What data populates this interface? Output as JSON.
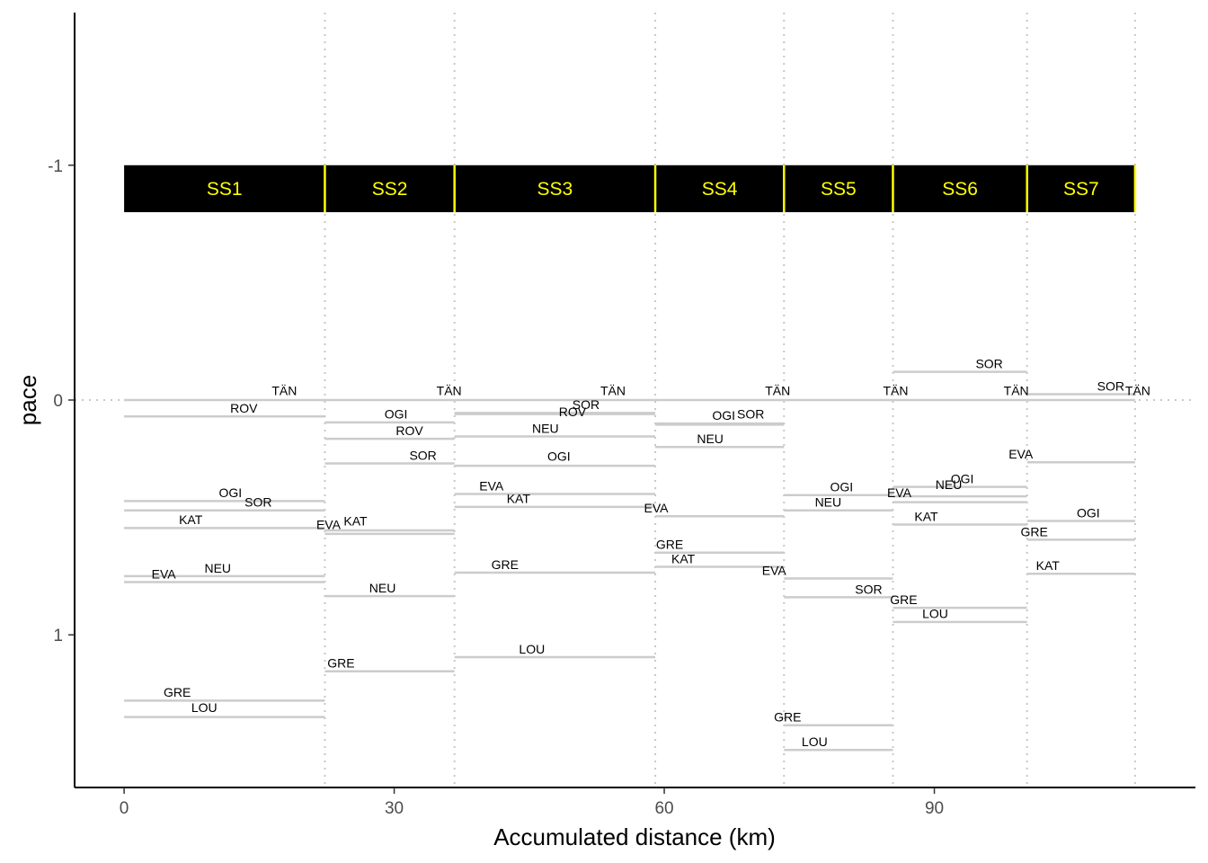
{
  "chart_data": {
    "type": "line",
    "xlabel": "Accumulated distance (km)",
    "ylabel": "pace",
    "xlim": [
      -5.5,
      119
    ],
    "ylim": [
      -1.65,
      1.65
    ],
    "x_ticks": [
      0,
      30,
      60,
      90
    ],
    "x_tick_labels": [
      "0",
      "30",
      "60",
      "90"
    ],
    "y_ticks": [
      -1,
      0,
      1
    ],
    "y_tick_labels": [
      "-1",
      "0",
      "1"
    ],
    "y_reversed": true,
    "grid": false,
    "stage_boundaries": [
      0,
      22.3,
      36.7,
      59.0,
      73.3,
      85.4,
      100.3,
      112.3
    ],
    "stage_band": {
      "y_top": -1.0,
      "y_bottom": -0.8,
      "color": "#000000",
      "label_color": "#ffff00"
    },
    "stages": [
      {
        "name": "SS1",
        "start": 0,
        "end": 22.3
      },
      {
        "name": "SS2",
        "start": 22.3,
        "end": 36.7
      },
      {
        "name": "SS3",
        "start": 36.7,
        "end": 59.0
      },
      {
        "name": "SS4",
        "start": 59.0,
        "end": 73.3
      },
      {
        "name": "SS5",
        "start": 73.3,
        "end": 85.4
      },
      {
        "name": "SS6",
        "start": 85.4,
        "end": 100.3
      },
      {
        "name": "SS7",
        "start": 100.3,
        "end": 112.3
      }
    ],
    "segments": [
      {
        "stage": "SS1",
        "driver": "TÄN",
        "y": 0.0,
        "label_x": 17.8,
        "label_y": -0.04
      },
      {
        "stage": "SS1",
        "driver": "ROV",
        "y": 0.07,
        "label_x": 13.3,
        "label_y": 0.035
      },
      {
        "stage": "SS1",
        "driver": "OGI",
        "y": 0.43,
        "label_x": 11.8,
        "label_y": 0.395
      },
      {
        "stage": "SS1",
        "driver": "SOR",
        "y": 0.47,
        "label_x": 14.9,
        "label_y": 0.435
      },
      {
        "stage": "SS1",
        "driver": "KAT",
        "y": 0.545,
        "label_x": 7.4,
        "label_y": 0.51
      },
      {
        "stage": "SS1",
        "driver": "EVA",
        "y": 0.775,
        "label_x": 4.4,
        "label_y": 0.74
      },
      {
        "stage": "SS1",
        "driver": "NEU",
        "y": 0.75,
        "label_x": 10.4,
        "label_y": 0.715
      },
      {
        "stage": "SS1",
        "driver": "GRE",
        "y": 1.28,
        "label_x": 5.9,
        "label_y": 1.245
      },
      {
        "stage": "SS1",
        "driver": "LOU",
        "y": 1.35,
        "label_x": 8.9,
        "label_y": 1.31
      },
      {
        "stage": "SS2",
        "driver": "TÄN",
        "y": 0.0,
        "label_x": 36.1,
        "label_y": -0.04
      },
      {
        "stage": "SS2",
        "driver": "OGI",
        "y": 0.095,
        "label_x": 30.2,
        "label_y": 0.06
      },
      {
        "stage": "SS2",
        "driver": "ROV",
        "y": 0.165,
        "label_x": 31.7,
        "label_y": 0.13
      },
      {
        "stage": "SS2",
        "driver": "SOR",
        "y": 0.27,
        "label_x": 33.2,
        "label_y": 0.235
      },
      {
        "stage": "SS2",
        "driver": "EVA",
        "y": 0.555,
        "label_x": 22.7,
        "label_y": 0.53
      },
      {
        "stage": "SS2",
        "driver": "KAT",
        "y": 0.57,
        "label_x": 25.7,
        "label_y": 0.515
      },
      {
        "stage": "SS2",
        "driver": "NEU",
        "y": 0.835,
        "label_x": 28.7,
        "label_y": 0.8
      },
      {
        "stage": "SS2",
        "driver": "GRE",
        "y": 1.155,
        "label_x": 24.1,
        "label_y": 1.12
      },
      {
        "stage": "SS3",
        "driver": "TÄN",
        "y": 0.0,
        "label_x": 54.3,
        "label_y": -0.04
      },
      {
        "stage": "SS3",
        "driver": "SOR",
        "y": 0.055,
        "label_x": 51.3,
        "label_y": 0.02
      },
      {
        "stage": "SS3",
        "driver": "ROV",
        "y": 0.06,
        "label_x": 49.8,
        "label_y": 0.05
      },
      {
        "stage": "SS3",
        "driver": "NEU",
        "y": 0.155,
        "label_x": 46.8,
        "label_y": 0.12
      },
      {
        "stage": "SS3",
        "driver": "OGI",
        "y": 0.28,
        "label_x": 48.3,
        "label_y": 0.24
      },
      {
        "stage": "SS3",
        "driver": "EVA",
        "y": 0.4,
        "label_x": 40.8,
        "label_y": 0.365
      },
      {
        "stage": "SS3",
        "driver": "KAT",
        "y": 0.455,
        "label_x": 43.8,
        "label_y": 0.42
      },
      {
        "stage": "SS3",
        "driver": "GRE",
        "y": 0.735,
        "label_x": 42.3,
        "label_y": 0.7
      },
      {
        "stage": "SS3",
        "driver": "LOU",
        "y": 1.095,
        "label_x": 45.3,
        "label_y": 1.06
      },
      {
        "stage": "SS4",
        "driver": "TÄN",
        "y": 0.0,
        "label_x": 72.6,
        "label_y": -0.04
      },
      {
        "stage": "SS4",
        "driver": "OGI",
        "y": 0.1,
        "label_x": 66.6,
        "label_y": 0.065
      },
      {
        "stage": "SS4",
        "driver": "SOR",
        "y": 0.105,
        "label_x": 69.6,
        "label_y": 0.06
      },
      {
        "stage": "SS4",
        "driver": "NEU",
        "y": 0.2,
        "label_x": 65.1,
        "label_y": 0.165
      },
      {
        "stage": "SS4",
        "driver": "EVA",
        "y": 0.495,
        "label_x": 59.1,
        "label_y": 0.46
      },
      {
        "stage": "SS4",
        "driver": "GRE",
        "y": 0.65,
        "label_x": 60.6,
        "label_y": 0.615
      },
      {
        "stage": "SS4",
        "driver": "KAT",
        "y": 0.71,
        "label_x": 62.1,
        "label_y": 0.675
      },
      {
        "stage": "SS5",
        "driver": "TÄN",
        "y": 0.0,
        "label_x": 85.7,
        "label_y": -0.04
      },
      {
        "stage": "SS5",
        "driver": "OGI",
        "y": 0.405,
        "label_x": 79.7,
        "label_y": 0.37
      },
      {
        "stage": "SS5",
        "driver": "NEU",
        "y": 0.47,
        "label_x": 78.2,
        "label_y": 0.435
      },
      {
        "stage": "SS5",
        "driver": "EVA",
        "y": 0.76,
        "label_x": 72.2,
        "label_y": 0.725
      },
      {
        "stage": "SS5",
        "driver": "SOR",
        "y": 0.84,
        "label_x": 82.7,
        "label_y": 0.805
      },
      {
        "stage": "SS5",
        "driver": "GRE",
        "y": 1.385,
        "label_x": 73.7,
        "label_y": 1.35
      },
      {
        "stage": "SS5",
        "driver": "LOU",
        "y": 1.49,
        "label_x": 76.7,
        "label_y": 1.455
      },
      {
        "stage": "SS6",
        "driver": "SOR",
        "y": -0.12,
        "label_x": 96.1,
        "label_y": -0.155
      },
      {
        "stage": "SS6",
        "driver": "TÄN",
        "y": 0.0,
        "label_x": 99.1,
        "label_y": -0.04
      },
      {
        "stage": "SS6",
        "driver": "OGI",
        "y": 0.37,
        "label_x": 93.1,
        "label_y": 0.335
      },
      {
        "stage": "SS6",
        "driver": "EVA",
        "y": 0.41,
        "label_x": 86.1,
        "label_y": 0.395
      },
      {
        "stage": "SS6",
        "driver": "NEU",
        "y": 0.435,
        "label_x": 91.6,
        "label_y": 0.36
      },
      {
        "stage": "SS6",
        "driver": "KAT",
        "y": 0.53,
        "label_x": 89.1,
        "label_y": 0.495
      },
      {
        "stage": "SS6",
        "driver": "GRE",
        "y": 0.885,
        "label_x": 86.6,
        "label_y": 0.85
      },
      {
        "stage": "SS6",
        "driver": "LOU",
        "y": 0.945,
        "label_x": 90.1,
        "label_y": 0.91
      },
      {
        "stage": "SS7",
        "driver": "SOR",
        "y": -0.025,
        "label_x": 109.6,
        "label_y": -0.06
      },
      {
        "stage": "SS7",
        "driver": "TÄN",
        "y": 0.0,
        "label_x": 112.6,
        "label_y": -0.04
      },
      {
        "stage": "SS7",
        "driver": "EVA",
        "y": 0.265,
        "label_x": 99.6,
        "label_y": 0.23
      },
      {
        "stage": "SS7",
        "driver": "OGI",
        "y": 0.515,
        "label_x": 107.1,
        "label_y": 0.48
      },
      {
        "stage": "SS7",
        "driver": "GRE",
        "y": 0.595,
        "label_x": 101.1,
        "label_y": 0.56
      },
      {
        "stage": "SS7",
        "driver": "KAT",
        "y": 0.74,
        "label_x": 102.6,
        "label_y": 0.705
      }
    ]
  }
}
